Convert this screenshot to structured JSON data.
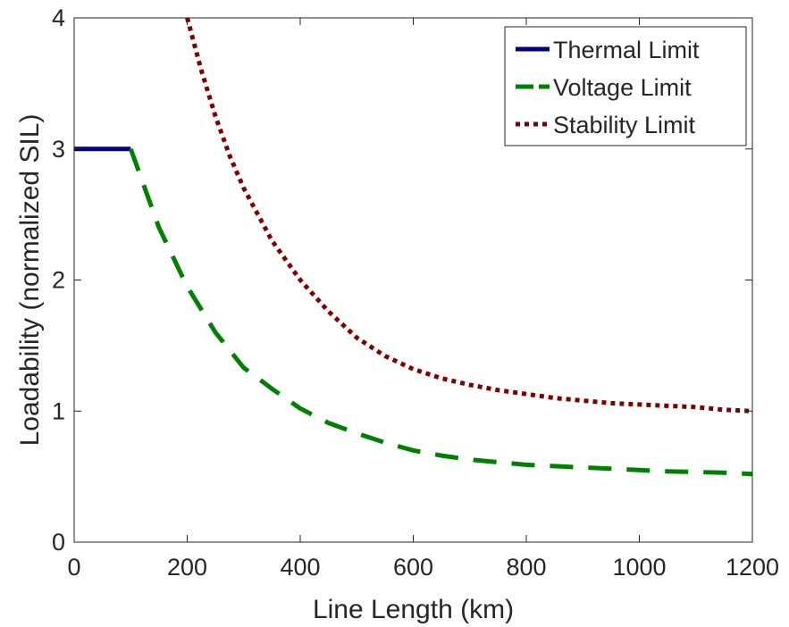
{
  "chart_data": {
    "type": "line",
    "title": "",
    "xlabel": "Line Length (km)",
    "ylabel": "Loadability (normalized SIL)",
    "xlim": [
      0,
      1200
    ],
    "ylim": [
      0,
      4
    ],
    "xticks": [
      "0",
      "200",
      "400",
      "600",
      "800",
      "1000",
      "1200"
    ],
    "yticks": [
      "0",
      "1",
      "2",
      "3",
      "4"
    ],
    "grid": false,
    "legend_position": "top-right",
    "series": [
      {
        "name": "Thermal Limit",
        "color": "#00007f",
        "style": "solid",
        "x": [
          0,
          100
        ],
        "y": [
          3.0,
          3.0
        ]
      },
      {
        "name": "Voltage Limit",
        "color": "#008000",
        "style": "dashed",
        "x": [
          100,
          150,
          200,
          250,
          300,
          350,
          400,
          450,
          500,
          550,
          600,
          650,
          700,
          750,
          800,
          850,
          900,
          950,
          1000,
          1050,
          1100,
          1150,
          1200
        ],
        "y": [
          3.0,
          2.4,
          1.95,
          1.6,
          1.33,
          1.17,
          1.02,
          0.91,
          0.83,
          0.76,
          0.7,
          0.66,
          0.63,
          0.61,
          0.59,
          0.58,
          0.57,
          0.56,
          0.55,
          0.54,
          0.535,
          0.53,
          0.52
        ]
      },
      {
        "name": "Stability Limit",
        "color": "#7f0000",
        "style": "dotted",
        "x": [
          200,
          225,
          250,
          275,
          300,
          350,
          400,
          450,
          500,
          550,
          600,
          650,
          700,
          750,
          800,
          850,
          900,
          950,
          1000,
          1050,
          1100,
          1150,
          1200
        ],
        "y": [
          4.0,
          3.6,
          3.25,
          2.95,
          2.7,
          2.3,
          2.0,
          1.76,
          1.56,
          1.42,
          1.32,
          1.25,
          1.2,
          1.16,
          1.13,
          1.1,
          1.08,
          1.06,
          1.05,
          1.04,
          1.03,
          1.01,
          1.0
        ]
      }
    ]
  }
}
